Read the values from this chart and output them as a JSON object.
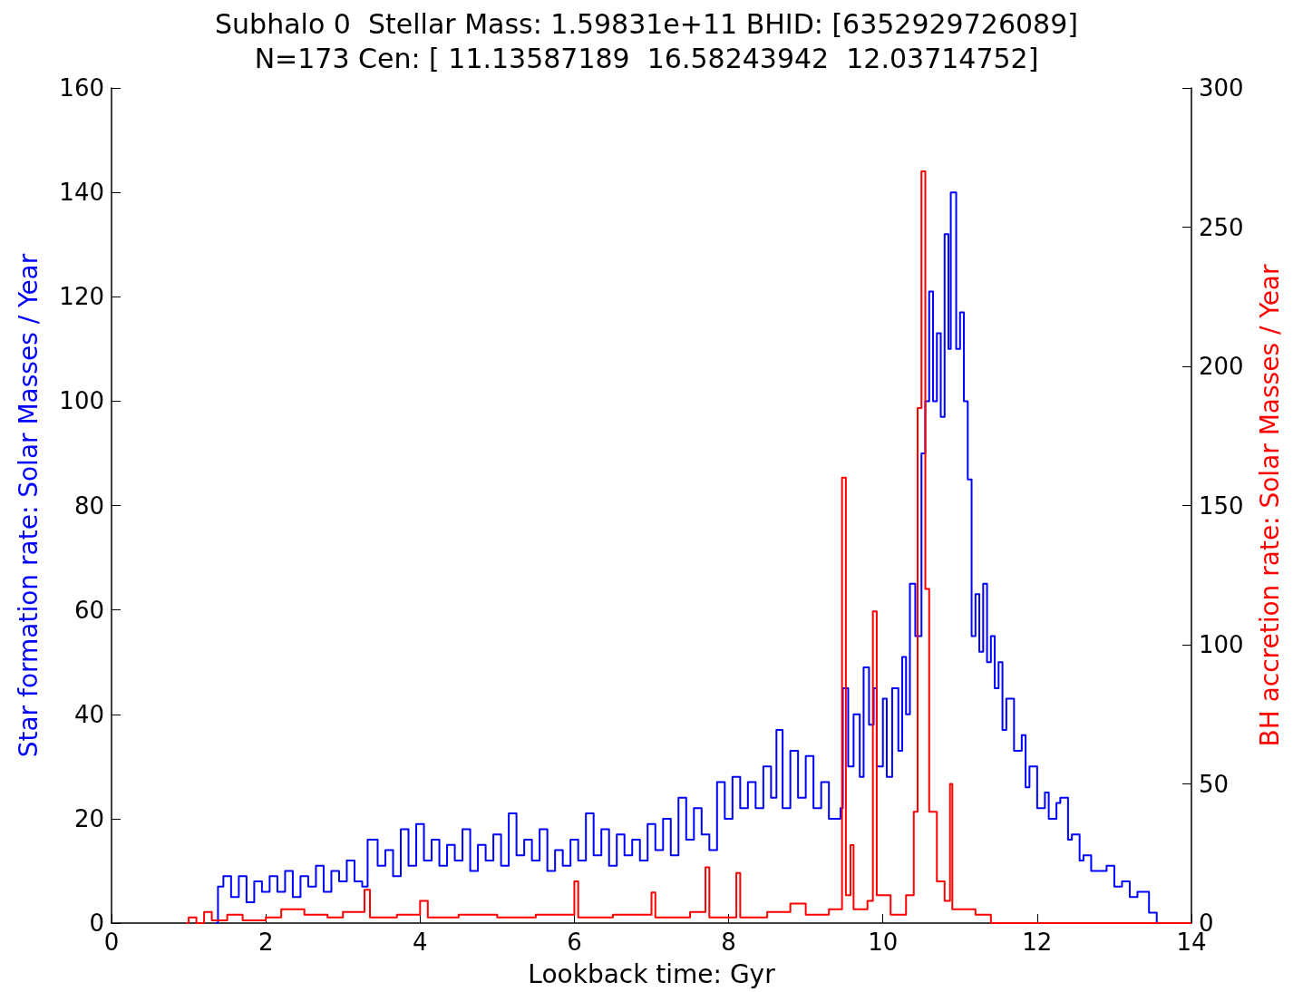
{
  "chart_data": {
    "type": "step",
    "title": "Subhalo 0  Stellar Mass: 1.59831e+11 BHID: [6352929726089]\nN=173 Cen: [ 11.13587189  16.58243942  12.03714752]",
    "xlabel": "Lookback time: Gyr",
    "ylabel": "Star formation rate: Solar Masses / Year",
    "y2label": "BH accretion rate: Solar Masses / Year",
    "xlim": [
      0,
      14
    ],
    "xticks": [
      0,
      2,
      4,
      6,
      8,
      10,
      12,
      14
    ],
    "ylim": [
      0,
      160
    ],
    "yticks": [
      0,
      20,
      40,
      60,
      80,
      100,
      120,
      140,
      160
    ],
    "y2lim": [
      0,
      300
    ],
    "y2ticks": [
      0,
      50,
      100,
      150,
      200,
      250,
      300
    ],
    "grid": false,
    "marker": "none",
    "line_style": "solid",
    "series": [
      {
        "color": "#0000ff",
        "x": [
          1.35,
          1.38,
          1.45,
          1.55,
          1.65,
          1.75,
          1.85,
          1.95,
          2.05,
          2.15,
          2.25,
          2.35,
          2.45,
          2.55,
          2.65,
          2.75,
          2.85,
          2.95,
          3.05,
          3.15,
          3.25,
          3.32,
          3.45,
          3.55,
          3.65,
          3.75,
          3.85,
          3.95,
          4.05,
          4.15,
          4.25,
          4.35,
          4.45,
          4.55,
          4.65,
          4.75,
          4.85,
          4.95,
          5.05,
          5.15,
          5.25,
          5.35,
          5.45,
          5.55,
          5.65,
          5.75,
          5.85,
          5.95,
          6.05,
          6.15,
          6.25,
          6.35,
          6.45,
          6.55,
          6.65,
          6.75,
          6.85,
          6.95,
          7.05,
          7.15,
          7.25,
          7.35,
          7.45,
          7.55,
          7.65,
          7.75,
          7.85,
          7.95,
          8.05,
          8.15,
          8.25,
          8.35,
          8.45,
          8.55,
          8.62,
          8.7,
          8.8,
          8.9,
          9.0,
          9.1,
          9.2,
          9.3,
          9.45,
          9.48,
          9.55,
          9.62,
          9.7,
          9.75,
          9.82,
          9.88,
          9.92,
          10.0,
          10.05,
          10.12,
          10.2,
          10.25,
          10.3,
          10.35,
          10.42,
          10.5,
          10.55,
          10.6,
          10.65,
          10.7,
          10.75,
          10.8,
          10.85,
          10.88,
          10.95,
          11.0,
          11.05,
          11.1,
          11.15,
          11.2,
          11.25,
          11.3,
          11.35,
          11.4,
          11.45,
          11.5,
          11.55,
          11.6,
          11.7,
          11.8,
          11.85,
          11.9,
          12.0,
          12.1,
          12.15,
          12.25,
          12.3,
          12.4,
          12.45,
          12.55,
          12.6,
          12.7,
          12.8,
          12.9,
          13.0,
          13.1,
          13.2,
          13.3,
          13.45,
          13.55,
          14
        ],
        "values": [
          0,
          7,
          9,
          5,
          9,
          4,
          8,
          6,
          9,
          6,
          10,
          5,
          9,
          7,
          11,
          6,
          10,
          8,
          12,
          8,
          7,
          16,
          11,
          14,
          9,
          18,
          11,
          19,
          12,
          16,
          11,
          15,
          12,
          18,
          10,
          15,
          12,
          17,
          11,
          21,
          13,
          16,
          12,
          18,
          10,
          14,
          11,
          16,
          12,
          21,
          13,
          18,
          11,
          17,
          13,
          16,
          12,
          19,
          14,
          20,
          13,
          24,
          16,
          22,
          17,
          14,
          27,
          20,
          28,
          22,
          27,
          22,
          30,
          24,
          37,
          22,
          33,
          24,
          32,
          22,
          27,
          20,
          22,
          45,
          30,
          40,
          28,
          49,
          38,
          45,
          30,
          43,
          28,
          45,
          33,
          51,
          40,
          65,
          55,
          90,
          100,
          121,
          100,
          113,
          97,
          132,
          110,
          140,
          110,
          117,
          100,
          85,
          55,
          63,
          52,
          65,
          50,
          55,
          45,
          50,
          37,
          43,
          33,
          36,
          26,
          30,
          22,
          25,
          20,
          23,
          24,
          16,
          17,
          12,
          13,
          10,
          10,
          11,
          7,
          8,
          5,
          6,
          2,
          0,
          0
        ]
      },
      {
        "color": "#ff0000",
        "axis": "y2",
        "x": [
          0.97,
          1.0,
          1.1,
          1.2,
          1.3,
          1.5,
          1.7,
          2.0,
          2.2,
          2.5,
          2.8,
          3.0,
          3.28,
          3.35,
          3.7,
          4.0,
          4.1,
          4.5,
          5.0,
          5.5,
          6.0,
          6.05,
          6.5,
          7.0,
          7.05,
          7.5,
          7.7,
          7.75,
          8.1,
          8.15,
          8.5,
          8.8,
          9.0,
          9.3,
          9.47,
          9.52,
          9.58,
          9.62,
          9.8,
          9.87,
          9.92,
          10.1,
          10.3,
          10.4,
          10.45,
          10.5,
          10.55,
          10.6,
          10.7,
          10.8,
          10.87,
          10.9,
          11.2,
          11.4,
          14
        ],
        "values": [
          0,
          2,
          0,
          4,
          1,
          3,
          1,
          2,
          5,
          3,
          2,
          4,
          12,
          2,
          3,
          8,
          2,
          3,
          2,
          3,
          15,
          2,
          3,
          11,
          2,
          4,
          20,
          2,
          18,
          2,
          4,
          7,
          3,
          5,
          160,
          10,
          28,
          5,
          8,
          112,
          10,
          3,
          10,
          40,
          185,
          270,
          120,
          40,
          15,
          8,
          50,
          5,
          3,
          0,
          0
        ]
      }
    ]
  }
}
